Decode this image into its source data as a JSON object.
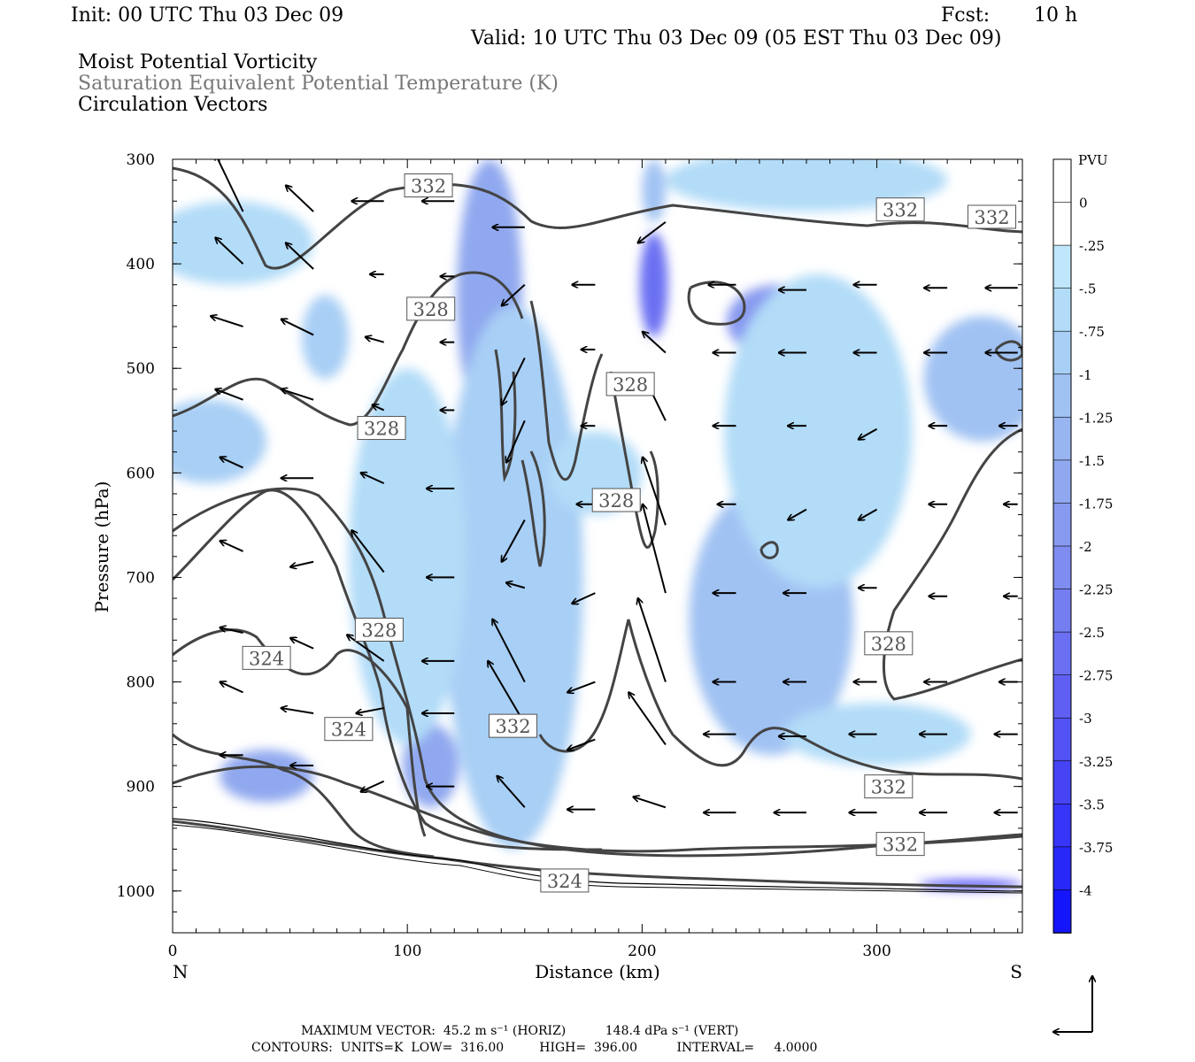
{
  "header": {
    "init": "Init: 00 UTC Thu 03 Dec 09",
    "fcst_label": "Fcst:",
    "fcst_value": "10 h",
    "valid": "Valid: 10 UTC Thu 03 Dec 09 (05 EST Thu 03 Dec 09)"
  },
  "titles": {
    "line1": "Moist Potential Vorticity",
    "line2": "Saturation Equivalent Potential Temperature (K)",
    "line3": "Circulation Vectors"
  },
  "footer": {
    "max_vector": "MAXIMUM VECTOR:  45.2 m s⁻¹ (HORIZ)          148.4 dPa s⁻¹ (VERT)",
    "contours": "CONTOURS:  UNITS=K  LOW=  316.00         HIGH=  396.00          INTERVAL=     4.0000"
  },
  "chart_data": {
    "type": "heatmap",
    "xlabel": "Distance (km)",
    "ylabel": "Pressure (hPa)",
    "xlim": [
      0,
      362
    ],
    "ylim": [
      1040,
      300
    ],
    "x_ticks": [
      "0",
      "100",
      "200",
      "300"
    ],
    "y_ticks": [
      "300",
      "400",
      "500",
      "600",
      "700",
      "800",
      "900",
      "1000"
    ],
    "x_end_labels": {
      "left": "N",
      "right": "S"
    },
    "colorbar": {
      "unit": "PVU",
      "levels": [
        "0",
        "-.25",
        "-.5",
        "-.75",
        "-1",
        "-1.25",
        "-1.5",
        "-1.75",
        "-2",
        "-2.25",
        "-2.5",
        "-2.75",
        "-3",
        "-3.25",
        "-3.5",
        "-3.75",
        "-4"
      ],
      "colors": [
        "#ffffff",
        "#ffffff",
        "#bfe6fb",
        "#b2dcf8",
        "#a8cff5",
        "#a0c2f3",
        "#98b5f1",
        "#90a8ef",
        "#889af0",
        "#7f8cf0",
        "#757ef1",
        "#6b70f2",
        "#5f60f3",
        "#5352f4",
        "#4644f5",
        "#3735f7",
        "#2828f9",
        "#1515fb"
      ]
    },
    "contour_labels": [
      {
        "value": "332",
        "x": 109,
        "p": 325
      },
      {
        "value": "332",
        "x": 310,
        "p": 348
      },
      {
        "value": "332",
        "x": 349,
        "p": 355
      },
      {
        "value": "328",
        "x": 110,
        "p": 443
      },
      {
        "value": "328",
        "x": 195,
        "p": 515
      },
      {
        "value": "328",
        "x": 89,
        "p": 557
      },
      {
        "value": "328",
        "x": 189,
        "p": 626
      },
      {
        "value": "328",
        "x": 88,
        "p": 750
      },
      {
        "value": "328",
        "x": 305,
        "p": 763
      },
      {
        "value": "324",
        "x": 40,
        "p": 777
      },
      {
        "value": "324",
        "x": 75,
        "p": 845
      },
      {
        "value": "332",
        "x": 145,
        "p": 842
      },
      {
        "value": "332",
        "x": 305,
        "p": 900
      },
      {
        "value": "332",
        "x": 310,
        "p": 955
      },
      {
        "value": "324",
        "x": 167,
        "p": 990
      }
    ],
    "pv_blobs": [
      {
        "x": 135,
        "p": 430,
        "rx": 7,
        "rp": 80,
        "level": 16
      },
      {
        "x": 135,
        "p": 430,
        "rx": 14,
        "rp": 130,
        "level": 6
      },
      {
        "x": 145,
        "p": 760,
        "rx": 13,
        "rp": 180,
        "level": 9
      },
      {
        "x": 145,
        "p": 700,
        "rx": 30,
        "rp": 260,
        "level": 3
      },
      {
        "x": 260,
        "p": 815,
        "rx": 14,
        "rp": 40,
        "level": 12
      },
      {
        "x": 255,
        "p": 740,
        "rx": 35,
        "rp": 130,
        "level": 4
      },
      {
        "x": 258,
        "p": 455,
        "rx": 22,
        "rp": 35,
        "level": 7
      },
      {
        "x": 275,
        "p": 560,
        "rx": 40,
        "rp": 150,
        "level": 2
      },
      {
        "x": 345,
        "p": 510,
        "rx": 25,
        "rp": 60,
        "level": 4
      },
      {
        "x": 205,
        "p": 420,
        "rx": 6,
        "rp": 50,
        "level": 10
      },
      {
        "x": 110,
        "p": 880,
        "rx": 12,
        "rp": 40,
        "level": 6
      },
      {
        "x": 100,
        "p": 680,
        "rx": 25,
        "rp": 180,
        "level": 2
      },
      {
        "x": 40,
        "p": 890,
        "rx": 20,
        "rp": 25,
        "level": 6
      },
      {
        "x": 15,
        "p": 570,
        "rx": 25,
        "rp": 40,
        "level": 3
      },
      {
        "x": 25,
        "p": 380,
        "rx": 35,
        "rp": 40,
        "level": 2
      },
      {
        "x": 65,
        "p": 470,
        "rx": 10,
        "rp": 40,
        "level": 3
      },
      {
        "x": 205,
        "p": 330,
        "rx": 5,
        "rp": 30,
        "level": 4
      },
      {
        "x": 180,
        "p": 600,
        "rx": 20,
        "rp": 40,
        "level": 2
      },
      {
        "x": 300,
        "p": 850,
        "rx": 40,
        "rp": 30,
        "level": 2
      },
      {
        "x": 270,
        "p": 320,
        "rx": 60,
        "rp": 30,
        "level": 2
      },
      {
        "x": 340,
        "p": 994,
        "rx": 22,
        "rp": 4,
        "level": 14
      }
    ],
    "vectors": [
      {
        "x": 30,
        "p": 350,
        "dx": -12,
        "dp": -55
      },
      {
        "x": 60,
        "p": 350,
        "dx": -12,
        "dp": -25
      },
      {
        "x": 30,
        "p": 400,
        "dx": -12,
        "dp": -25
      },
      {
        "x": 60,
        "p": 405,
        "dx": -12,
        "dp": -25
      },
      {
        "x": 90,
        "p": 340,
        "dx": -14,
        "dp": 0
      },
      {
        "x": 120,
        "p": 340,
        "dx": -14,
        "dp": 0
      },
      {
        "x": 150,
        "p": 365,
        "dx": -14,
        "dp": 0
      },
      {
        "x": 90,
        "p": 410,
        "dx": -6,
        "dp": 0
      },
      {
        "x": 120,
        "p": 412,
        "dx": -6,
        "dp": 0
      },
      {
        "x": 150,
        "p": 420,
        "dx": -10,
        "dp": 20
      },
      {
        "x": 30,
        "p": 460,
        "dx": -14,
        "dp": -10
      },
      {
        "x": 60,
        "p": 468,
        "dx": -14,
        "dp": -15
      },
      {
        "x": 90,
        "p": 475,
        "dx": -8,
        "dp": -5
      },
      {
        "x": 120,
        "p": 475,
        "dx": -6,
        "dp": 0
      },
      {
        "x": 150,
        "p": 490,
        "dx": -10,
        "dp": 45
      },
      {
        "x": 180,
        "p": 420,
        "dx": -10,
        "dp": 0
      },
      {
        "x": 210,
        "p": 360,
        "dx": -12,
        "dp": 20
      },
      {
        "x": 180,
        "p": 482,
        "dx": -6,
        "dp": 0
      },
      {
        "x": 210,
        "p": 485,
        "dx": -10,
        "dp": -20
      },
      {
        "x": 240,
        "p": 420,
        "dx": -12,
        "dp": 0
      },
      {
        "x": 270,
        "p": 425,
        "dx": -12,
        "dp": 0
      },
      {
        "x": 300,
        "p": 420,
        "dx": -10,
        "dp": 0
      },
      {
        "x": 240,
        "p": 485,
        "dx": -10,
        "dp": 0
      },
      {
        "x": 270,
        "p": 485,
        "dx": -12,
        "dp": 0
      },
      {
        "x": 300,
        "p": 485,
        "dx": -10,
        "dp": 0
      },
      {
        "x": 330,
        "p": 423,
        "dx": -10,
        "dp": 0
      },
      {
        "x": 360,
        "p": 423,
        "dx": -14,
        "dp": 0
      },
      {
        "x": 330,
        "p": 485,
        "dx": -10,
        "dp": 0
      },
      {
        "x": 360,
        "p": 485,
        "dx": -14,
        "dp": 0
      },
      {
        "x": 30,
        "p": 530,
        "dx": -12,
        "dp": -10
      },
      {
        "x": 60,
        "p": 530,
        "dx": -14,
        "dp": -10
      },
      {
        "x": 90,
        "p": 540,
        "dx": -5,
        "dp": -5
      },
      {
        "x": 120,
        "p": 540,
        "dx": -6,
        "dp": 0
      },
      {
        "x": 150,
        "p": 550,
        "dx": -8,
        "dp": 40
      },
      {
        "x": 180,
        "p": 555,
        "dx": -6,
        "dp": 0
      },
      {
        "x": 210,
        "p": 550,
        "dx": -10,
        "dp": -45
      },
      {
        "x": 240,
        "p": 555,
        "dx": -10,
        "dp": 0
      },
      {
        "x": 270,
        "p": 555,
        "dx": -8,
        "dp": 0
      },
      {
        "x": 300,
        "p": 558,
        "dx": -8,
        "dp": 10
      },
      {
        "x": 330,
        "p": 555,
        "dx": -8,
        "dp": 0
      },
      {
        "x": 360,
        "p": 555,
        "dx": -8,
        "dp": 0
      },
      {
        "x": 30,
        "p": 595,
        "dx": -10,
        "dp": -10
      },
      {
        "x": 60,
        "p": 605,
        "dx": -14,
        "dp": 0
      },
      {
        "x": 90,
        "p": 610,
        "dx": -10,
        "dp": -10
      },
      {
        "x": 120,
        "p": 615,
        "dx": -12,
        "dp": 0
      },
      {
        "x": 150,
        "p": 645,
        "dx": -10,
        "dp": 40
      },
      {
        "x": 180,
        "p": 630,
        "dx": -8,
        "dp": 0
      },
      {
        "x": 210,
        "p": 650,
        "dx": -10,
        "dp": -65
      },
      {
        "x": 240,
        "p": 630,
        "dx": -8,
        "dp": 0
      },
      {
        "x": 270,
        "p": 635,
        "dx": -8,
        "dp": 10
      },
      {
        "x": 300,
        "p": 635,
        "dx": -8,
        "dp": 10
      },
      {
        "x": 330,
        "p": 630,
        "dx": -8,
        "dp": 0
      },
      {
        "x": 360,
        "p": 630,
        "dx": -6,
        "dp": 0
      },
      {
        "x": 30,
        "p": 675,
        "dx": -10,
        "dp": -10
      },
      {
        "x": 60,
        "p": 685,
        "dx": -10,
        "dp": 5
      },
      {
        "x": 90,
        "p": 695,
        "dx": -14,
        "dp": -40
      },
      {
        "x": 120,
        "p": 700,
        "dx": -12,
        "dp": 0
      },
      {
        "x": 150,
        "p": 710,
        "dx": -8,
        "dp": -5
      },
      {
        "x": 180,
        "p": 715,
        "dx": -10,
        "dp": 10
      },
      {
        "x": 210,
        "p": 715,
        "dx": -10,
        "dp": -85
      },
      {
        "x": 240,
        "p": 715,
        "dx": -10,
        "dp": 0
      },
      {
        "x": 270,
        "p": 715,
        "dx": -10,
        "dp": 0
      },
      {
        "x": 300,
        "p": 710,
        "dx": -8,
        "dp": 0
      },
      {
        "x": 330,
        "p": 718,
        "dx": -8,
        "dp": 0
      },
      {
        "x": 360,
        "p": 718,
        "dx": -6,
        "dp": 0
      },
      {
        "x": 30,
        "p": 753,
        "dx": -10,
        "dp": -5
      },
      {
        "x": 60,
        "p": 768,
        "dx": -10,
        "dp": -10
      },
      {
        "x": 90,
        "p": 780,
        "dx": -16,
        "dp": -25
      },
      {
        "x": 120,
        "p": 780,
        "dx": -14,
        "dp": 0
      },
      {
        "x": 150,
        "p": 800,
        "dx": -14,
        "dp": -60
      },
      {
        "x": 180,
        "p": 800,
        "dx": -12,
        "dp": 10
      },
      {
        "x": 210,
        "p": 800,
        "dx": -12,
        "dp": -80
      },
      {
        "x": 240,
        "p": 800,
        "dx": -10,
        "dp": 0
      },
      {
        "x": 270,
        "p": 800,
        "dx": -10,
        "dp": 0
      },
      {
        "x": 300,
        "p": 800,
        "dx": -10,
        "dp": 0
      },
      {
        "x": 330,
        "p": 800,
        "dx": -10,
        "dp": 0
      },
      {
        "x": 360,
        "p": 800,
        "dx": -8,
        "dp": 0
      },
      {
        "x": 30,
        "p": 810,
        "dx": -10,
        "dp": -10
      },
      {
        "x": 60,
        "p": 830,
        "dx": -14,
        "dp": -5
      },
      {
        "x": 90,
        "p": 825,
        "dx": -12,
        "dp": 5
      },
      {
        "x": 120,
        "p": 830,
        "dx": -14,
        "dp": 0
      },
      {
        "x": 150,
        "p": 840,
        "dx": -16,
        "dp": -60
      },
      {
        "x": 180,
        "p": 855,
        "dx": -12,
        "dp": 10
      },
      {
        "x": 210,
        "p": 860,
        "dx": -16,
        "dp": -50
      },
      {
        "x": 240,
        "p": 850,
        "dx": -14,
        "dp": 0
      },
      {
        "x": 270,
        "p": 852,
        "dx": -12,
        "dp": 0
      },
      {
        "x": 300,
        "p": 850,
        "dx": -12,
        "dp": 0
      },
      {
        "x": 330,
        "p": 850,
        "dx": -12,
        "dp": 0
      },
      {
        "x": 360,
        "p": 850,
        "dx": -10,
        "dp": 0
      },
      {
        "x": 30,
        "p": 870,
        "dx": -10,
        "dp": 0
      },
      {
        "x": 60,
        "p": 880,
        "dx": -10,
        "dp": 0
      },
      {
        "x": 90,
        "p": 895,
        "dx": -10,
        "dp": 10
      },
      {
        "x": 120,
        "p": 900,
        "dx": -12,
        "dp": 0
      },
      {
        "x": 150,
        "p": 920,
        "dx": -12,
        "dp": -30
      },
      {
        "x": 180,
        "p": 922,
        "dx": -12,
        "dp": 0
      },
      {
        "x": 210,
        "p": 920,
        "dx": -14,
        "dp": -10
      },
      {
        "x": 240,
        "p": 925,
        "dx": -14,
        "dp": 0
      },
      {
        "x": 270,
        "p": 925,
        "dx": -14,
        "dp": 0
      },
      {
        "x": 300,
        "p": 925,
        "dx": -12,
        "dp": 0
      },
      {
        "x": 330,
        "p": 925,
        "dx": -12,
        "dp": 0
      },
      {
        "x": 360,
        "p": 925,
        "dx": -10,
        "dp": 0
      }
    ]
  }
}
